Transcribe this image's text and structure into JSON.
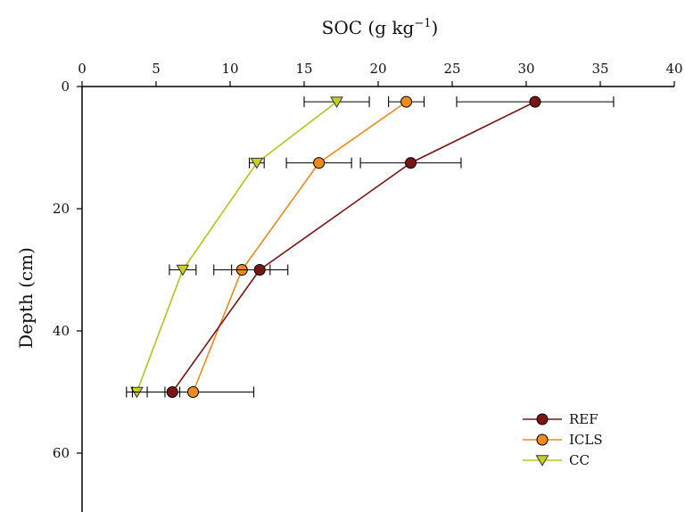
{
  "chart_data": {
    "type": "line",
    "title": "",
    "xlabel": "SOC (g kg",
    "xlabel_sup": "−1",
    "xlabel_close": ")",
    "ylabel": "Depth (cm)",
    "x_axis_position": "top",
    "xlim": [
      0,
      40
    ],
    "ylim": [
      0,
      69
    ],
    "y_inverted": true,
    "xticks": [
      0,
      5,
      10,
      15,
      20,
      25,
      30,
      35,
      40
    ],
    "yticks": [
      0,
      20,
      40,
      60
    ],
    "grid": false,
    "legend_position": "bottom-right",
    "series": [
      {
        "name": "REF",
        "marker": "circle",
        "color": "#7b1515",
        "fill": "#7b1515",
        "points": [
          {
            "x": 30.6,
            "y": 2.5,
            "err": 5.3
          },
          {
            "x": 22.2,
            "y": 12.5,
            "err": 3.4
          },
          {
            "x": 12.0,
            "y": 30.0,
            "err": 1.9
          },
          {
            "x": 6.1,
            "y": 50.0,
            "err": 0.5
          }
        ]
      },
      {
        "name": "ICLS",
        "marker": "circle",
        "color": "#f08a1e",
        "fill": "#f08a1e",
        "points": [
          {
            "x": 21.9,
            "y": 2.5,
            "err": 1.2
          },
          {
            "x": 16.0,
            "y": 12.5,
            "err": 2.2
          },
          {
            "x": 10.8,
            "y": 30.0,
            "err": 1.9
          },
          {
            "x": 7.5,
            "y": 50.0,
            "err": 4.1
          }
        ]
      },
      {
        "name": "CC",
        "marker": "triangle-down",
        "color": "#b9c21a",
        "fill": "#c8cf1e",
        "points": [
          {
            "x": 17.2,
            "y": 2.5,
            "err": 2.2
          },
          {
            "x": 11.8,
            "y": 12.5,
            "err": 0.5
          },
          {
            "x": 6.8,
            "y": 30.0,
            "err": 0.9
          },
          {
            "x": 3.7,
            "y": 50.0,
            "err": 0.7
          }
        ]
      }
    ]
  }
}
